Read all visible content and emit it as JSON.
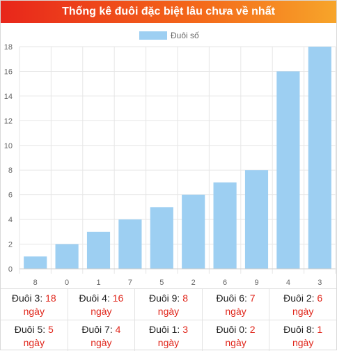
{
  "title": "Thống kê đuôi đặc biệt lâu chưa về nhất",
  "chart_data": {
    "type": "bar",
    "categories": [
      "8",
      "0",
      "1",
      "7",
      "5",
      "2",
      "6",
      "9",
      "4",
      "3"
    ],
    "series": [
      {
        "name": "Đuôi số",
        "values": [
          1,
          2,
          3,
          4,
          5,
          6,
          7,
          8,
          16,
          18
        ],
        "color": "#9dcff2"
      }
    ],
    "ylim": [
      0,
      18
    ],
    "yticks": [
      0,
      2,
      4,
      6,
      8,
      10,
      12,
      14,
      16,
      18
    ],
    "grid": true,
    "legend": "top-center"
  },
  "stats": {
    "unit": "ngày",
    "rows": [
      [
        {
          "label": "Đuôi 3:",
          "value": "18"
        },
        {
          "label": "Đuôi 4:",
          "value": "16"
        },
        {
          "label": "Đuôi 9:",
          "value": "8"
        },
        {
          "label": "Đuôi 6:",
          "value": "7"
        },
        {
          "label": "Đuôi 2:",
          "value": "6"
        }
      ],
      [
        {
          "label": "Đuôi 5:",
          "value": "5"
        },
        {
          "label": "Đuôi 7:",
          "value": "4"
        },
        {
          "label": "Đuôi 1:",
          "value": "3"
        },
        {
          "label": "Đuôi 0:",
          "value": "2"
        },
        {
          "label": "Đuôi 8:",
          "value": "1"
        }
      ]
    ]
  }
}
